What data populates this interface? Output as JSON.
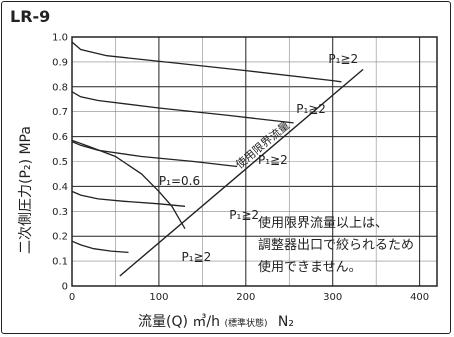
{
  "chart_data": {
    "type": "line",
    "title": "LR-9",
    "xlabel": "流量(Q) ㎥/h",
    "xlabel_note": "(標準状態)",
    "xlabel_tail": "N₂",
    "ylabel": "二次側圧力(P₂) MPa",
    "xlim": [
      0,
      420
    ],
    "ylim": [
      0,
      1.0
    ],
    "x_ticks": [
      "0",
      "100",
      "200",
      "300",
      "400"
    ],
    "y_ticks": [
      "0",
      "0.1",
      "0.2",
      "0.3",
      "0.4",
      "0.5",
      "0.6",
      "0.7",
      "0.8",
      "0.9",
      "1.0"
    ],
    "grid": true,
    "series": [
      {
        "name": "P₁≧2",
        "x": [
          0,
          10,
          40,
          120,
          200,
          300,
          310
        ],
        "y": [
          0.98,
          0.95,
          0.925,
          0.895,
          0.865,
          0.825,
          0.82
        ]
      },
      {
        "name": "P₁≧2",
        "x": [
          0,
          10,
          30,
          100,
          180,
          255
        ],
        "y": [
          0.78,
          0.76,
          0.745,
          0.715,
          0.685,
          0.655
        ]
      },
      {
        "name": "P₁≧2",
        "x": [
          0,
          10,
          30,
          80,
          140,
          190
        ],
        "y": [
          0.58,
          0.565,
          0.545,
          0.52,
          0.5,
          0.48
        ]
      },
      {
        "name": "P₁≧2",
        "x": [
          0,
          10,
          30,
          60,
          100,
          130
        ],
        "y": [
          0.38,
          0.365,
          0.35,
          0.34,
          0.33,
          0.32
        ]
      },
      {
        "name": "P₁≧2",
        "x": [
          0,
          10,
          25,
          45,
          65
        ],
        "y": [
          0.18,
          0.165,
          0.15,
          0.14,
          0.135
        ]
      },
      {
        "name": "P₁=0.6",
        "x": [
          0,
          20,
          50,
          80,
          100,
          115,
          125,
          130
        ],
        "y": [
          0.585,
          0.56,
          0.52,
          0.45,
          0.38,
          0.32,
          0.26,
          0.23
        ]
      }
    ],
    "limit_line": {
      "name": "使用限界流量",
      "x": [
        55,
        335
      ],
      "y": [
        0.04,
        0.87
      ]
    },
    "annotations": [
      "P₁≧2",
      "P₁≧2",
      "P₁≧2",
      "P₁≧2",
      "P₁≧2",
      "P₁=0.6",
      "使用限界流量"
    ],
    "note": [
      "使用限界流量以上は、",
      "調整器出口で絞られるため",
      "使用できません。"
    ]
  }
}
